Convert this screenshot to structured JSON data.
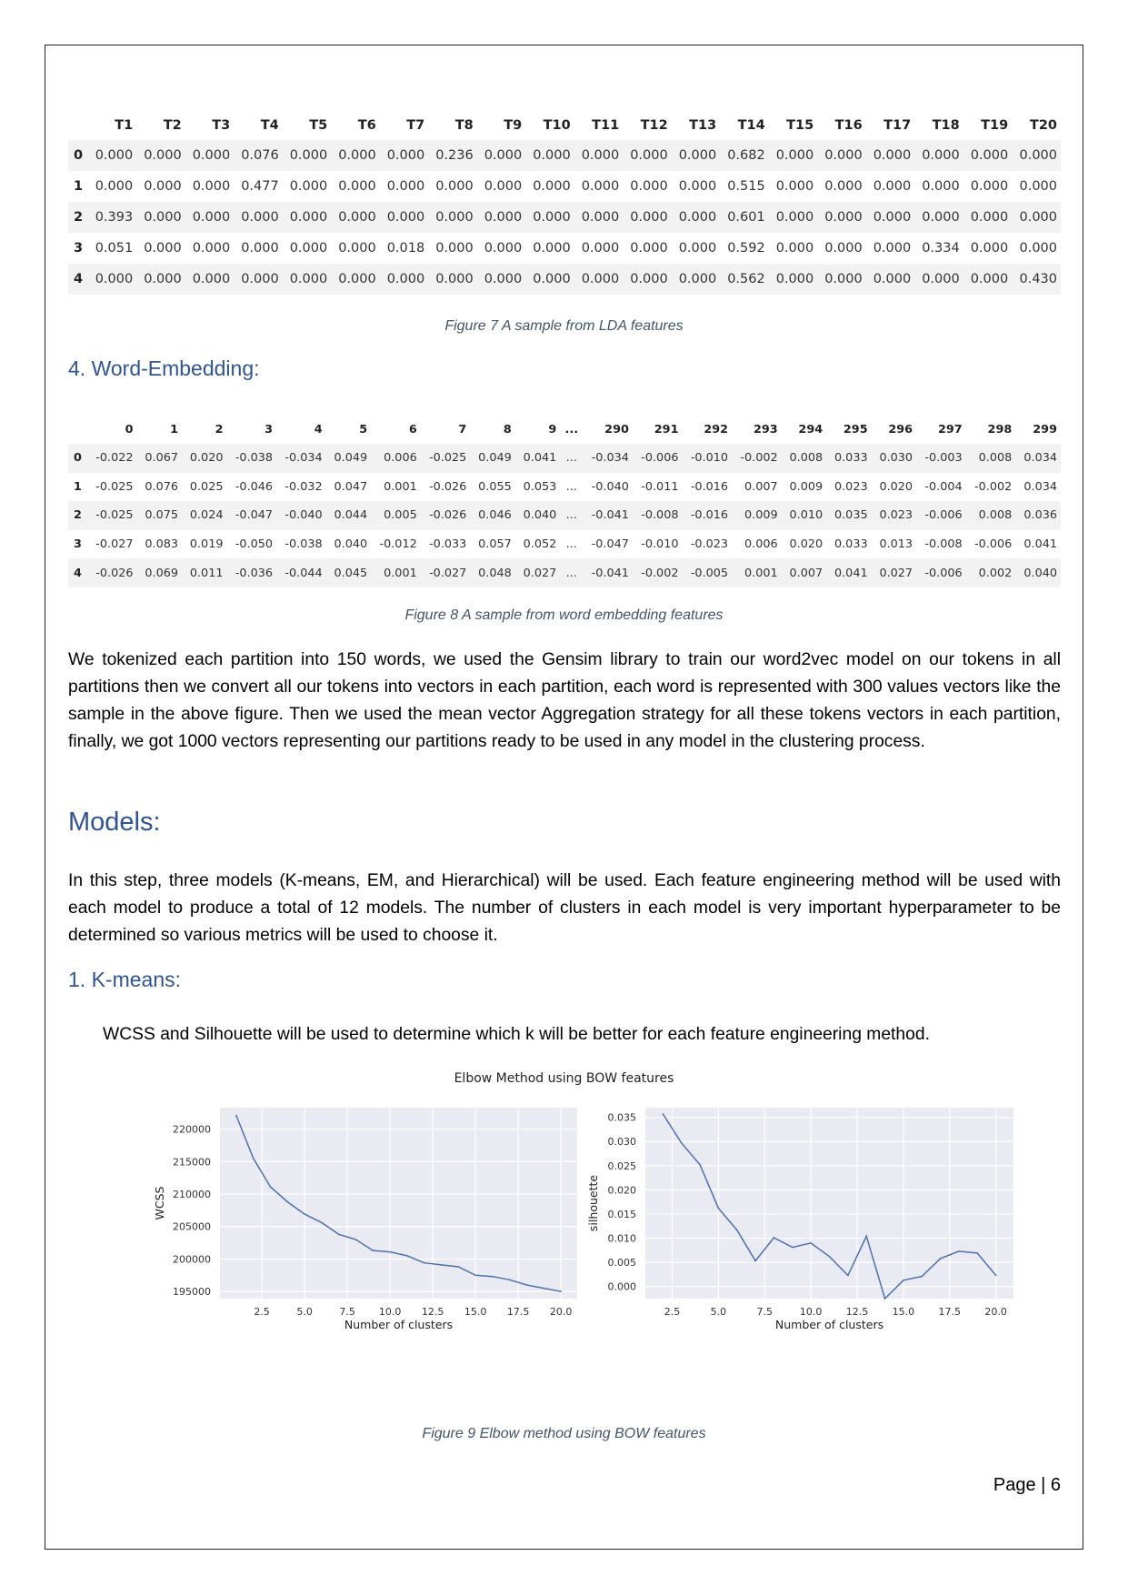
{
  "lda": {
    "columns": [
      "",
      "T1",
      "T2",
      "T3",
      "T4",
      "T5",
      "T6",
      "T7",
      "T8",
      "T9",
      "T10",
      "T11",
      "T12",
      "T13",
      "T14",
      "T15",
      "T16",
      "T17",
      "T18",
      "T19",
      "T20"
    ],
    "rows": [
      [
        "0",
        "0.000",
        "0.000",
        "0.000",
        "0.076",
        "0.000",
        "0.000",
        "0.000",
        "0.236",
        "0.000",
        "0.000",
        "0.000",
        "0.000",
        "0.000",
        "0.682",
        "0.000",
        "0.000",
        "0.000",
        "0.000",
        "0.000",
        "0.000"
      ],
      [
        "1",
        "0.000",
        "0.000",
        "0.000",
        "0.477",
        "0.000",
        "0.000",
        "0.000",
        "0.000",
        "0.000",
        "0.000",
        "0.000",
        "0.000",
        "0.000",
        "0.515",
        "0.000",
        "0.000",
        "0.000",
        "0.000",
        "0.000",
        "0.000"
      ],
      [
        "2",
        "0.393",
        "0.000",
        "0.000",
        "0.000",
        "0.000",
        "0.000",
        "0.000",
        "0.000",
        "0.000",
        "0.000",
        "0.000",
        "0.000",
        "0.000",
        "0.601",
        "0.000",
        "0.000",
        "0.000",
        "0.000",
        "0.000",
        "0.000"
      ],
      [
        "3",
        "0.051",
        "0.000",
        "0.000",
        "0.000",
        "0.000",
        "0.000",
        "0.018",
        "0.000",
        "0.000",
        "0.000",
        "0.000",
        "0.000",
        "0.000",
        "0.592",
        "0.000",
        "0.000",
        "0.000",
        "0.334",
        "0.000",
        "0.000"
      ],
      [
        "4",
        "0.000",
        "0.000",
        "0.000",
        "0.000",
        "0.000",
        "0.000",
        "0.000",
        "0.000",
        "0.000",
        "0.000",
        "0.000",
        "0.000",
        "0.000",
        "0.562",
        "0.000",
        "0.000",
        "0.000",
        "0.000",
        "0.000",
        "0.430"
      ]
    ],
    "caption": "Figure 7 A sample from LDA features"
  },
  "section_word_embedding": "4.  Word-Embedding:",
  "we": {
    "columns": [
      "",
      "0",
      "1",
      "2",
      "3",
      "4",
      "5",
      "6",
      "7",
      "8",
      "9",
      "...",
      "290",
      "291",
      "292",
      "293",
      "294",
      "295",
      "296",
      "297",
      "298",
      "299"
    ],
    "rows": [
      [
        "0",
        "-0.022",
        "0.067",
        "0.020",
        "-0.038",
        "-0.034",
        "0.049",
        "0.006",
        "-0.025",
        "0.049",
        "0.041",
        "...",
        "-0.034",
        "-0.006",
        "-0.010",
        "-0.002",
        "0.008",
        "0.033",
        "0.030",
        "-0.003",
        "0.008",
        "0.034"
      ],
      [
        "1",
        "-0.025",
        "0.076",
        "0.025",
        "-0.046",
        "-0.032",
        "0.047",
        "0.001",
        "-0.026",
        "0.055",
        "0.053",
        "...",
        "-0.040",
        "-0.011",
        "-0.016",
        "0.007",
        "0.009",
        "0.023",
        "0.020",
        "-0.004",
        "-0.002",
        "0.034"
      ],
      [
        "2",
        "-0.025",
        "0.075",
        "0.024",
        "-0.047",
        "-0.040",
        "0.044",
        "0.005",
        "-0.026",
        "0.046",
        "0.040",
        "...",
        "-0.041",
        "-0.008",
        "-0.016",
        "0.009",
        "0.010",
        "0.035",
        "0.023",
        "-0.006",
        "0.008",
        "0.036"
      ],
      [
        "3",
        "-0.027",
        "0.083",
        "0.019",
        "-0.050",
        "-0.038",
        "0.040",
        "-0.012",
        "-0.033",
        "0.057",
        "0.052",
        "...",
        "-0.047",
        "-0.010",
        "-0.023",
        "0.006",
        "0.020",
        "0.033",
        "0.013",
        "-0.008",
        "-0.006",
        "0.041"
      ],
      [
        "4",
        "-0.026",
        "0.069",
        "0.011",
        "-0.036",
        "-0.044",
        "0.045",
        "0.001",
        "-0.027",
        "0.048",
        "0.027",
        "...",
        "-0.041",
        "-0.002",
        "-0.005",
        "0.001",
        "0.007",
        "0.041",
        "0.027",
        "-0.006",
        "0.002",
        "0.040"
      ]
    ],
    "caption": "Figure 8 A sample from word embedding features"
  },
  "para_we": "We tokenized each partition into 150 words, we used the Gensim library to train our word2vec model on our tokens in all partitions then we convert all our tokens into vectors in each partition, each word is represented with 300 values vectors like the sample in the above figure. Then we used the mean vector Aggregation strategy for all these tokens vectors in each partition, finally, we got 1000 vectors representing our partitions ready to be used in any model in the clustering process.",
  "section_models": "Models:",
  "para_models": "In this step, three models (K-means, EM, and Hierarchical) will be used. Each feature engineering method will be used with each model to produce a total of 12 models. The number of clusters in each model is very important hyperparameter to be determined so various metrics will be used to choose it.",
  "section_kmeans": "1.  K-means:",
  "para_kmeans": "WCSS and Silhouette will be used to determine which k will be better for each feature engineering method.",
  "fig9_caption": "Figure 9 Elbow method using BOW features",
  "page_number": "Page | 6",
  "colors": {
    "heading": "#2f5496",
    "caption": "#44546a",
    "plot_bg": "#eaeaf2",
    "line": "#4c72b0"
  },
  "chart_data": [
    {
      "type": "line",
      "title": "Elbow Method using BOW features",
      "xlabel": "Number of clusters",
      "ylabel": "WCSS",
      "xlim": [
        0.05,
        20.95
      ],
      "ylim": [
        193900,
        223300
      ],
      "xticks": [
        2.5,
        5.0,
        7.5,
        10.0,
        12.5,
        15.0,
        17.5,
        20.0
      ],
      "xtick_labels": [
        "2.5",
        "5.0",
        "7.5",
        "10.0",
        "12.5",
        "15.0",
        "17.5",
        "20.0"
      ],
      "yticks": [
        195000,
        200000,
        205000,
        210000,
        215000,
        220000
      ],
      "ytick_labels": [
        "195000",
        "200000",
        "205000",
        "210000",
        "215000",
        "220000"
      ],
      "grid": true,
      "x": [
        1,
        2,
        3,
        4,
        5,
        6,
        7,
        8,
        9,
        10,
        11,
        12,
        13,
        14,
        15,
        16,
        17,
        18,
        19,
        20
      ],
      "values": [
        222100,
        215500,
        211100,
        208800,
        206900,
        205600,
        203800,
        203000,
        201300,
        201100,
        200500,
        199400,
        199100,
        198800,
        197500,
        197300,
        196800,
        196000,
        195500,
        195000
      ]
    },
    {
      "type": "line",
      "title": "",
      "xlabel": "Number of clusters",
      "ylabel": "silhouette",
      "xlim": [
        1.05,
        20.95
      ],
      "ylim": [
        -0.0025,
        0.037
      ],
      "xticks": [
        2.5,
        5.0,
        7.5,
        10.0,
        12.5,
        15.0,
        17.5,
        20.0
      ],
      "xtick_labels": [
        "2.5",
        "5.0",
        "7.5",
        "10.0",
        "12.5",
        "15.0",
        "17.5",
        "20.0"
      ],
      "yticks": [
        0.0,
        0.005,
        0.01,
        0.015,
        0.02,
        0.025,
        0.03,
        0.035
      ],
      "ytick_labels": [
        "0.000",
        "0.005",
        "0.010",
        "0.015",
        "0.020",
        "0.025",
        "0.030",
        "0.035"
      ],
      "grid": true,
      "x": [
        2,
        3,
        4,
        5,
        6,
        7,
        8,
        9,
        10,
        11,
        12,
        13,
        14,
        15,
        16,
        17,
        18,
        19,
        20
      ],
      "values": [
        0.0357,
        0.0297,
        0.0252,
        0.0162,
        0.0117,
        0.0053,
        0.0101,
        0.0081,
        0.009,
        0.0062,
        0.0023,
        0.0104,
        -0.0025,
        0.0013,
        0.0021,
        0.0058,
        0.0073,
        0.0069,
        0.0023
      ]
    }
  ]
}
